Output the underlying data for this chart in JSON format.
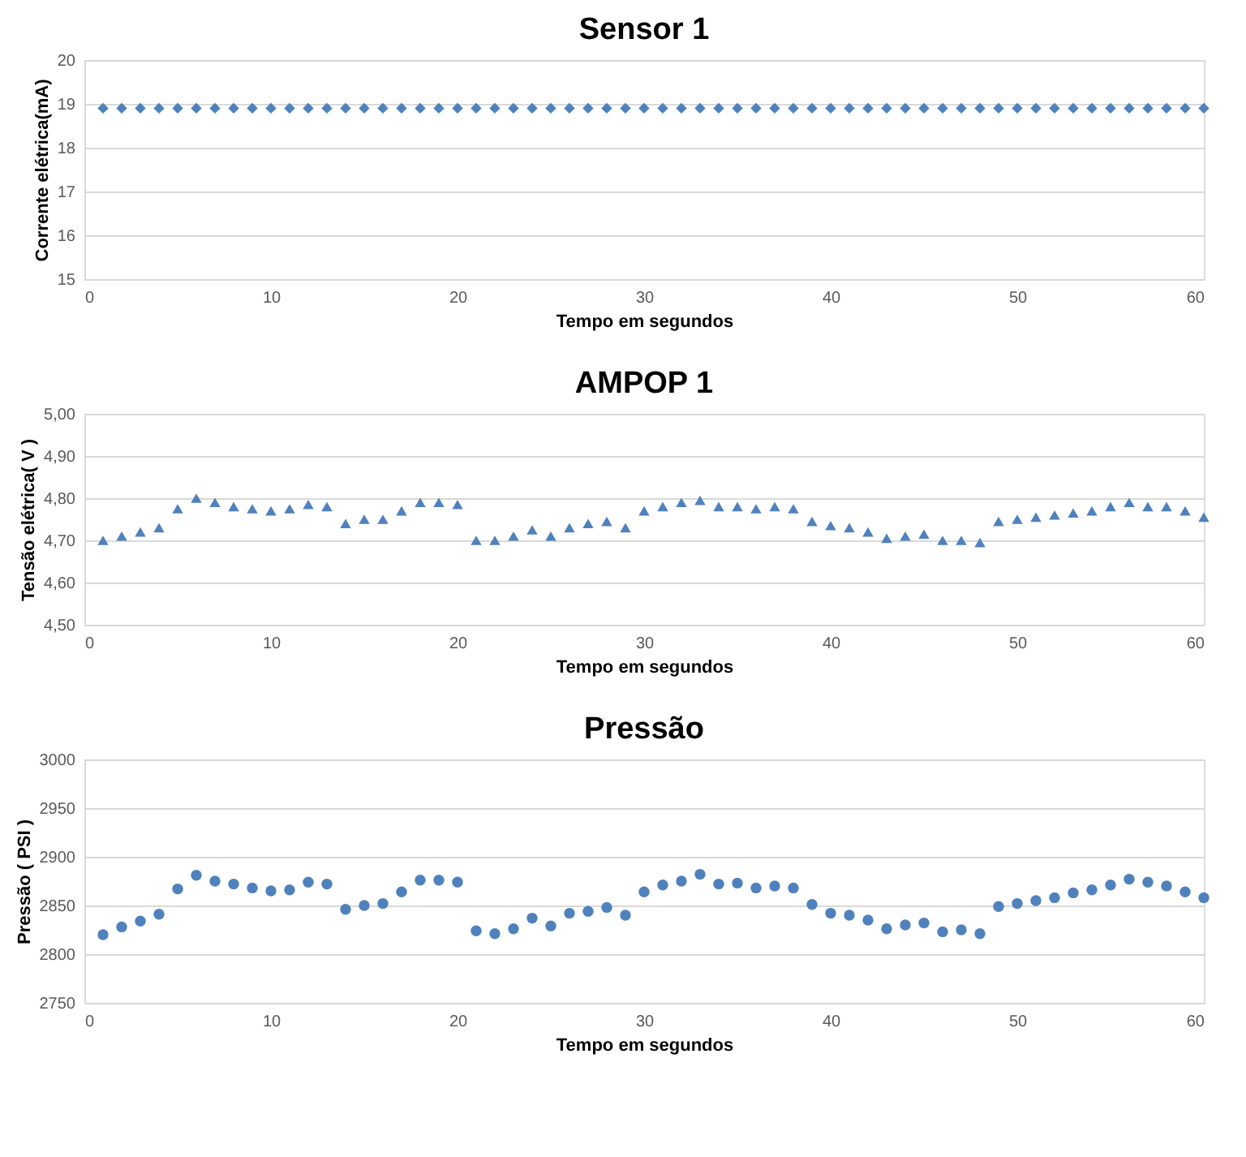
{
  "chart_data": [
    {
      "type": "scatter",
      "title": "Sensor 1",
      "xlabel": "Tempo em segundos",
      "ylabel": "Corrente elétrica(mA)",
      "marker": "diamond",
      "grid": "y",
      "x": [
        1,
        2,
        3,
        4,
        5,
        6,
        7,
        8,
        9,
        10,
        11,
        12,
        13,
        14,
        15,
        16,
        17,
        18,
        19,
        20,
        21,
        22,
        23,
        24,
        25,
        26,
        27,
        28,
        29,
        30,
        31,
        32,
        33,
        34,
        35,
        36,
        37,
        38,
        39,
        40,
        41,
        42,
        43,
        44,
        45,
        46,
        47,
        48,
        49,
        50,
        51,
        52,
        53,
        54,
        55,
        56,
        57,
        58,
        59,
        60
      ],
      "series": [
        {
          "color": "#4f81bd",
          "values": [
            18.9,
            18.9,
            18.9,
            18.9,
            18.9,
            18.9,
            18.9,
            18.9,
            18.9,
            18.9,
            18.9,
            18.9,
            18.9,
            18.9,
            18.9,
            18.9,
            18.9,
            18.9,
            18.9,
            18.9,
            18.9,
            18.9,
            18.9,
            18.9,
            18.9,
            18.9,
            18.9,
            18.9,
            18.9,
            18.9,
            18.9,
            18.9,
            18.9,
            18.9,
            18.9,
            18.9,
            18.9,
            18.9,
            18.9,
            18.9,
            18.9,
            18.9,
            18.9,
            18.9,
            18.9,
            18.9,
            18.9,
            18.9,
            18.9,
            18.9,
            18.9,
            18.9,
            18.9,
            18.9,
            18.9,
            18.9,
            18.9,
            18.9,
            18.9,
            18.9
          ]
        }
      ],
      "xlim": [
        0,
        60
      ],
      "xticks": [
        0,
        10,
        20,
        30,
        40,
        50,
        60
      ],
      "ylim": [
        15,
        20
      ],
      "yticks": [
        15,
        16,
        17,
        18,
        19,
        20
      ]
    },
    {
      "type": "scatter",
      "title": "AMPOP 1",
      "xlabel": "Tempo em segundos",
      "ylabel": "Tensão elétrica( V )",
      "marker": "triangle",
      "grid": "y",
      "x": [
        1,
        2,
        3,
        4,
        5,
        6,
        7,
        8,
        9,
        10,
        11,
        12,
        13,
        14,
        15,
        16,
        17,
        18,
        19,
        20,
        21,
        22,
        23,
        24,
        25,
        26,
        27,
        28,
        29,
        30,
        31,
        32,
        33,
        34,
        35,
        36,
        37,
        38,
        39,
        40,
        41,
        42,
        43,
        44,
        45,
        46,
        47,
        48,
        49,
        50,
        51,
        52,
        53,
        54,
        55,
        56,
        57,
        58,
        59,
        60
      ],
      "series": [
        {
          "color": "#4f81bd",
          "values": [
            4.7,
            4.71,
            4.72,
            4.73,
            4.775,
            4.8,
            4.79,
            4.78,
            4.775,
            4.77,
            4.775,
            4.785,
            4.78,
            4.74,
            4.75,
            4.75,
            4.77,
            4.79,
            4.79,
            4.785,
            4.7,
            4.7,
            4.71,
            4.725,
            4.71,
            4.73,
            4.74,
            4.745,
            4.73,
            4.77,
            4.78,
            4.79,
            4.795,
            4.78,
            4.78,
            4.775,
            4.78,
            4.775,
            4.745,
            4.735,
            4.73,
            4.72,
            4.705,
            4.71,
            4.715,
            4.7,
            4.7,
            4.695,
            4.745,
            4.75,
            4.755,
            4.76,
            4.765,
            4.77,
            4.78,
            4.79,
            4.78,
            4.78,
            4.77,
            4.755
          ]
        }
      ],
      "xlim": [
        0,
        60
      ],
      "xticks": [
        0,
        10,
        20,
        30,
        40,
        50,
        60
      ],
      "ylim": [
        4.5,
        5.0
      ],
      "yticks": [
        {
          "value": 4.5,
          "label": "4,50"
        },
        {
          "value": 4.6,
          "label": "4,60"
        },
        {
          "value": 4.7,
          "label": "4,70"
        },
        {
          "value": 4.8,
          "label": "4,80"
        },
        {
          "value": 4.9,
          "label": "4,90"
        },
        {
          "value": 5.0,
          "label": "5,00"
        }
      ]
    },
    {
      "type": "scatter",
      "title": "Pressão",
      "xlabel": "Tempo em segundos",
      "ylabel": "Pressão ( PSI )",
      "marker": "circle",
      "grid": "y",
      "x": [
        1,
        2,
        3,
        4,
        5,
        6,
        7,
        8,
        9,
        10,
        11,
        12,
        13,
        14,
        15,
        16,
        17,
        18,
        19,
        20,
        21,
        22,
        23,
        24,
        25,
        26,
        27,
        28,
        29,
        30,
        31,
        32,
        33,
        34,
        35,
        36,
        37,
        38,
        39,
        40,
        41,
        42,
        43,
        44,
        45,
        46,
        47,
        48,
        49,
        50,
        51,
        52,
        53,
        54,
        55,
        56,
        57,
        58,
        59,
        60
      ],
      "series": [
        {
          "color": "#4f81bd",
          "values": [
            2820,
            2828,
            2834,
            2841,
            2867,
            2881,
            2875,
            2872,
            2868,
            2865,
            2866,
            2874,
            2872,
            2846,
            2850,
            2852,
            2864,
            2876,
            2876,
            2874,
            2824,
            2821,
            2826,
            2837,
            2829,
            2842,
            2844,
            2848,
            2840,
            2864,
            2871,
            2875,
            2882,
            2872,
            2873,
            2868,
            2870,
            2868,
            2851,
            2842,
            2840,
            2835,
            2826,
            2830,
            2832,
            2823,
            2825,
            2821,
            2849,
            2852,
            2855,
            2858,
            2863,
            2866,
            2871,
            2877,
            2874,
            2870,
            2864,
            2858
          ]
        }
      ],
      "xlim": [
        0,
        60
      ],
      "xticks": [
        0,
        10,
        20,
        30,
        40,
        50,
        60
      ],
      "ylim": [
        2750,
        3000
      ],
      "yticks": [
        2750,
        2800,
        2850,
        2900,
        2950,
        3000
      ]
    }
  ]
}
